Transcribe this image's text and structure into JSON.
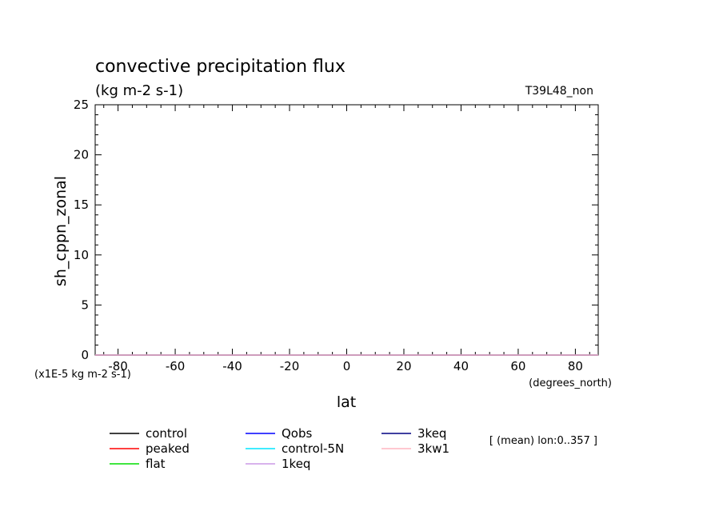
{
  "chart_data": {
    "type": "line",
    "title": "convective precipitation flux",
    "units": "(kg m-2 s-1)",
    "run_label": "T39L48_non",
    "ylabel": "sh_cppn_zonal",
    "xlabel": "lat",
    "x_unit_note": "(degrees_north)",
    "y_scale_note": "(x1E-5 kg m-2 s-1)",
    "info": "[ (mean) lon:0..357 ]",
    "xlim": [
      -88,
      88
    ],
    "ylim": [
      0,
      25
    ],
    "x_ticks": [
      -80,
      -60,
      -40,
      -20,
      0,
      20,
      40,
      60,
      80
    ],
    "y_ticks": [
      0,
      5,
      10,
      15,
      20,
      25
    ],
    "x_tick_labels": [
      "-80",
      "-60",
      "-40",
      "-20",
      "0",
      "20",
      "40",
      "60",
      "80"
    ],
    "y_tick_labels": [
      "0",
      "5",
      "10",
      "15",
      "20",
      "25"
    ],
    "x": [
      -88,
      -80,
      -60,
      -40,
      -20,
      0,
      20,
      40,
      60,
      80,
      88
    ],
    "series": [
      {
        "name": "control",
        "color": "#000000",
        "values": [
          0,
          0,
          0,
          0,
          0,
          0,
          0,
          0,
          0,
          0,
          0
        ]
      },
      {
        "name": "peaked",
        "color": "#ff0000",
        "values": [
          0,
          0,
          0,
          0,
          0,
          0,
          0,
          0,
          0,
          0,
          0
        ]
      },
      {
        "name": "flat",
        "color": "#00dd00",
        "values": [
          0,
          0,
          0,
          0,
          0,
          0,
          0,
          0,
          0,
          0,
          0
        ]
      },
      {
        "name": "Qobs",
        "color": "#0000ff",
        "values": [
          0,
          0,
          0,
          0,
          0,
          0,
          0,
          0,
          0,
          0,
          0
        ]
      },
      {
        "name": "control-5N",
        "color": "#00e5ff",
        "values": [
          0,
          0,
          0,
          0,
          0,
          0,
          0,
          0,
          0,
          0,
          0
        ]
      },
      {
        "name": "1keq",
        "color": "#cc99e6",
        "values": [
          0,
          0,
          0,
          0,
          0,
          0,
          0,
          0,
          0,
          0,
          0
        ]
      },
      {
        "name": "3keq",
        "color": "#000080",
        "values": [
          0,
          0,
          0,
          0,
          0,
          0,
          0,
          0,
          0,
          0,
          0
        ]
      },
      {
        "name": "3kw1",
        "color": "#ffb6c1",
        "values": [
          0,
          0,
          0,
          0,
          0,
          0,
          0,
          0,
          0,
          0,
          0
        ]
      }
    ],
    "grid": false,
    "legend_placement": "bottom"
  }
}
